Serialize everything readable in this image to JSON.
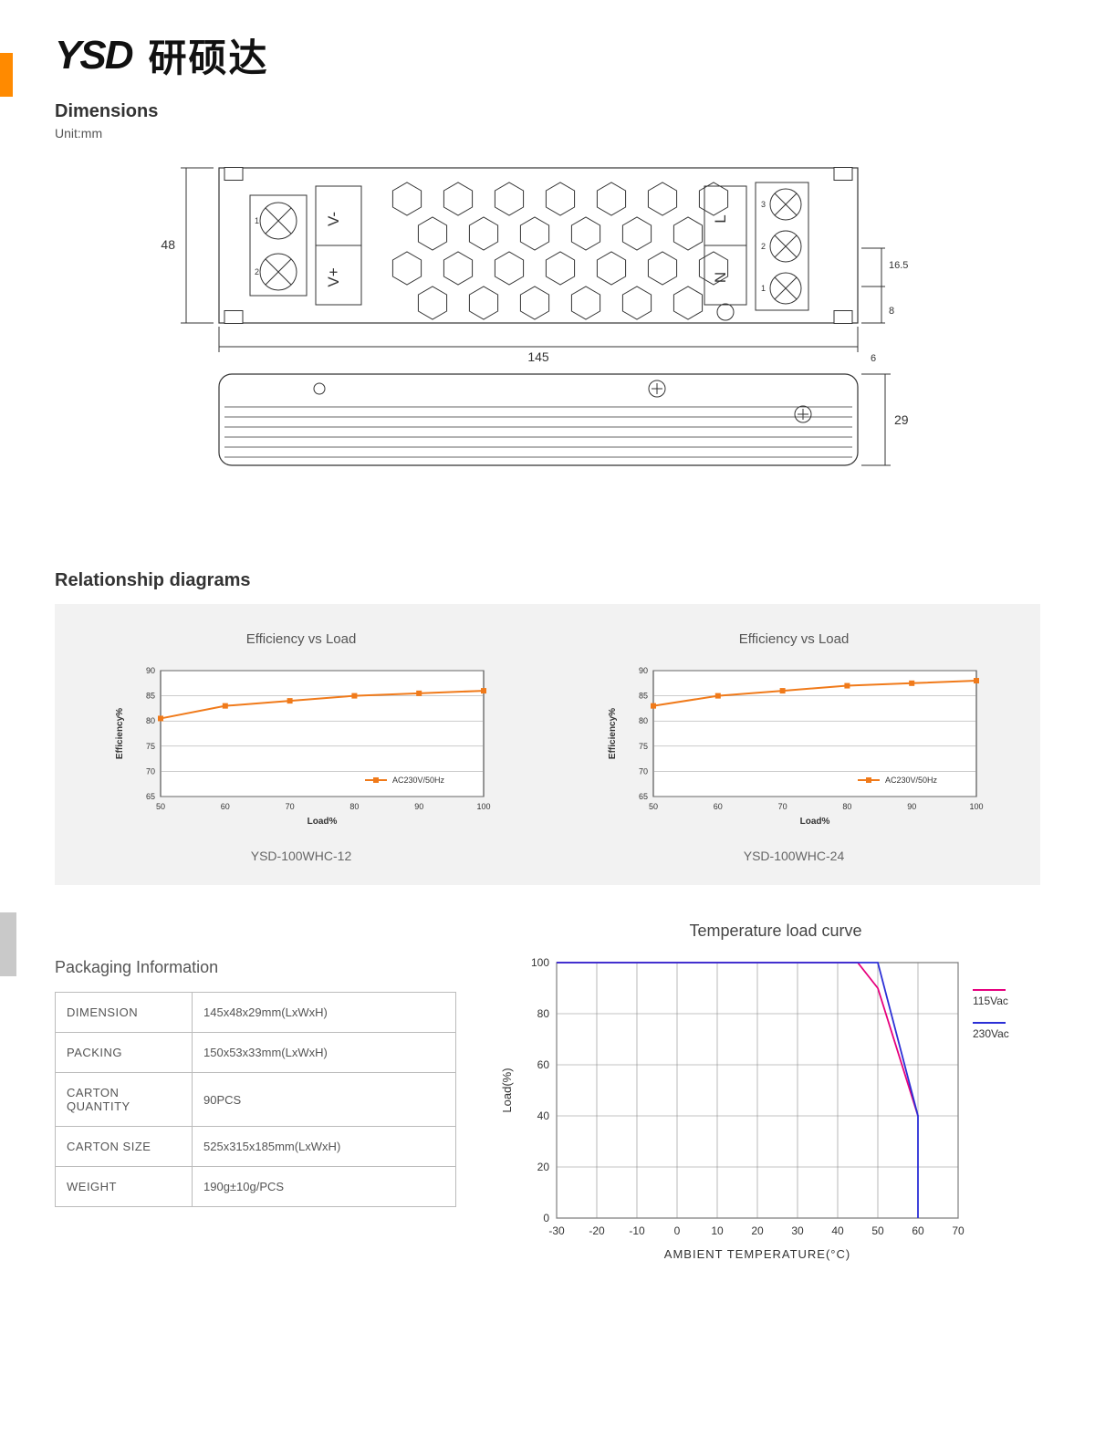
{
  "logo": {
    "text": "YSD",
    "cn": "研硕达"
  },
  "dimensions": {
    "title": "Dimensions",
    "unit": "Unit:mm"
  },
  "dim_values": {
    "w": "48",
    "l": "145",
    "h": "29",
    "t1": "16.5",
    "t2": "8",
    "t3": "6",
    "labels": [
      "V-",
      "V+",
      "L",
      "N"
    ],
    "screws": [
      "1",
      "2",
      "3"
    ]
  },
  "rel": {
    "title": "Relationship diagrams"
  },
  "chart1": {
    "title": "Efficiency vs Load",
    "footer": "YSD-100WHC-12",
    "ylabel": "Efficiency%",
    "xlabel": "Load%",
    "xticks": [
      50,
      60,
      70,
      80,
      90,
      100
    ],
    "yticks": [
      65,
      70,
      75,
      80,
      85,
      90
    ],
    "xlim": [
      50,
      100
    ],
    "ylim": [
      65,
      90
    ],
    "series": {
      "label": "AC230V/50Hz",
      "color": "#f07a1a",
      "points": [
        [
          50,
          80.5
        ],
        [
          60,
          83
        ],
        [
          70,
          84
        ],
        [
          80,
          85
        ],
        [
          90,
          85.5
        ],
        [
          100,
          86
        ]
      ]
    },
    "grid_color": "#999",
    "axis_fontsize": 9,
    "bg": "#ffffff"
  },
  "chart2": {
    "title": "Efficiency vs Load",
    "footer": "YSD-100WHC-24",
    "ylabel": "Efficiency%",
    "xlabel": "Load%",
    "xticks": [
      50,
      60,
      70,
      80,
      90,
      100
    ],
    "yticks": [
      65,
      70,
      75,
      80,
      85,
      90
    ],
    "xlim": [
      50,
      100
    ],
    "ylim": [
      65,
      90
    ],
    "series": {
      "label": "AC230V/50Hz",
      "color": "#f07a1a",
      "points": [
        [
          50,
          83
        ],
        [
          60,
          85
        ],
        [
          70,
          86
        ],
        [
          80,
          87
        ],
        [
          90,
          87.5
        ],
        [
          100,
          88
        ]
      ]
    },
    "grid_color": "#999",
    "axis_fontsize": 9,
    "bg": "#ffffff"
  },
  "pkg": {
    "title": "Packaging Information",
    "rows": [
      [
        "DIMENSION",
        "145x48x29mm(LxWxH)"
      ],
      [
        "PACKING",
        "150x53x33mm(LxWxH)"
      ],
      [
        "CARTON QUANTITY",
        "90PCS"
      ],
      [
        "CARTON SIZE",
        "525x315x185mm(LxWxH)"
      ],
      [
        "WEIGHT",
        "190g±10g/PCS"
      ]
    ]
  },
  "temp": {
    "title": "Temperature load curve",
    "ylabel": "Load(%)",
    "xlabel": "AMBIENT TEMPERATURE(°C)",
    "xticks": [
      -30,
      -20,
      -10,
      0,
      10,
      20,
      30,
      40,
      50,
      60,
      70
    ],
    "yticks": [
      0,
      20,
      40,
      60,
      80,
      100
    ],
    "xlim": [
      -30,
      70
    ],
    "ylim": [
      0,
      100
    ],
    "grid_color": "#888",
    "bg": "#ffffff",
    "series": [
      {
        "label": "115Vac",
        "color": "#e6007e",
        "points": [
          [
            -30,
            100
          ],
          [
            45,
            100
          ],
          [
            50,
            90
          ],
          [
            60,
            40
          ]
        ]
      },
      {
        "label": "230Vac",
        "color": "#2b2fd6",
        "points": [
          [
            -30,
            100
          ],
          [
            50,
            100
          ],
          [
            60,
            40
          ],
          [
            60,
            0
          ]
        ]
      }
    ],
    "legend_pos": "right"
  }
}
